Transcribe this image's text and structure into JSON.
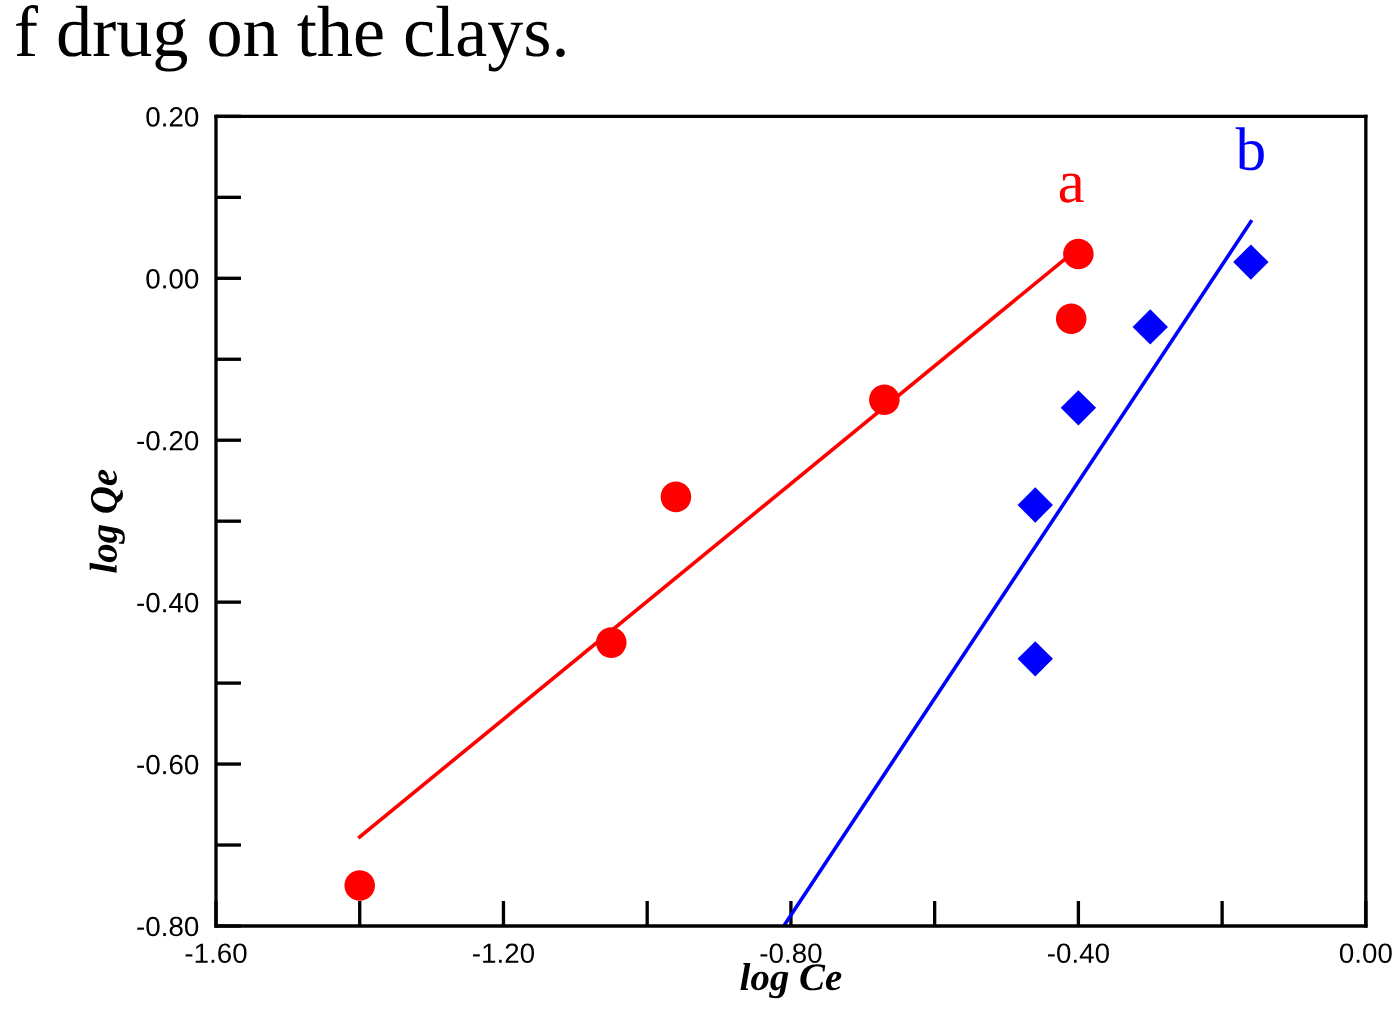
{
  "chart_data": {
    "type": "scatter",
    "xlabel": "log Ce",
    "ylabel": "log Qe",
    "annotations": [
      "f drug on the clays.",
      "a",
      "b"
    ],
    "xlim": [
      -1.6,
      0.0
    ],
    "ylim": [
      -0.8,
      0.2
    ],
    "xticks": [
      {
        "value": -1.6,
        "label": "-1.60"
      },
      {
        "value": -1.4,
        "label": null
      },
      {
        "value": -1.2,
        "label": "-1.20"
      },
      {
        "value": -1.0,
        "label": null
      },
      {
        "value": -0.8,
        "label": "-0.80"
      },
      {
        "value": -0.6,
        "label": null
      },
      {
        "value": -0.4,
        "label": "-0.40"
      },
      {
        "value": -0.2,
        "label": null
      },
      {
        "value": 0.0,
        "label": "0.00"
      }
    ],
    "yticks": [
      {
        "value": -0.8,
        "label": "-0.80"
      },
      {
        "value": -0.7,
        "label": null
      },
      {
        "value": -0.6,
        "label": "-0.60"
      },
      {
        "value": -0.5,
        "label": null
      },
      {
        "value": -0.4,
        "label": "-0.40"
      },
      {
        "value": -0.3,
        "label": null
      },
      {
        "value": -0.2,
        "label": "-0.20"
      },
      {
        "value": -0.1,
        "label": null
      },
      {
        "value": 0.0,
        "label": "0.00"
      },
      {
        "value": 0.1,
        "label": null
      },
      {
        "value": 0.2,
        "label": "0.20"
      }
    ],
    "grid": false,
    "legend": false,
    "series": [
      {
        "marker": "circle",
        "color": "#ff0000",
        "x": [
          -1.4,
          -1.05,
          -0.96,
          -0.67,
          -0.41,
          -0.4
        ],
        "values": [
          -0.75,
          -0.45,
          -0.27,
          -0.15,
          -0.05,
          0.03
        ]
      },
      {
        "type": "line",
        "marker": "none",
        "color": "#ff0000",
        "x": [
          -1.4,
          -0.41
        ],
        "values": [
          -0.69,
          0.03
        ]
      },
      {
        "marker": "diamond",
        "color": "#0000ff",
        "x": [
          -0.16,
          -0.3,
          -0.4,
          -0.46,
          -0.46
        ],
        "values": [
          0.02,
          -0.06,
          -0.16,
          -0.28,
          -0.47
        ]
      },
      {
        "type": "line",
        "marker": "none",
        "color": "#0000ff",
        "x": [
          -0.81,
          -0.16
        ],
        "values": [
          -0.8,
          0.07
        ]
      }
    ]
  }
}
